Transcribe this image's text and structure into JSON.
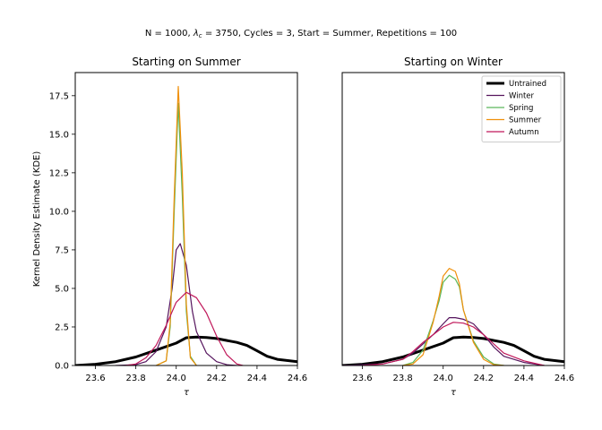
{
  "figure": {
    "suptitle_prefix": "N = 1000, ",
    "suptitle_lambda": "λ",
    "suptitle_sub": "c",
    "suptitle_suffix": " = 3750, Cycles = 3, Start = Summer, Repetitions = 100"
  },
  "chart_data": [
    {
      "type": "line",
      "title": "Starting on Summer",
      "xlabel": "τ",
      "ylabel": "Kernel Density Estimate (KDE)",
      "xlim": [
        23.5,
        24.6
      ],
      "ylim": [
        0,
        19
      ],
      "xticks": [
        "23.6",
        "23.8",
        "24.0",
        "24.2",
        "24.4",
        "24.6"
      ],
      "yticks": [
        "0.0",
        "2.5",
        "5.0",
        "7.5",
        "10.0",
        "12.5",
        "15.0",
        "17.5"
      ],
      "grid": false,
      "legend": "none",
      "series": [
        {
          "color": "#000000",
          "width": 3,
          "x": [
            23.5,
            23.6,
            23.7,
            23.8,
            23.9,
            24.0,
            24.05,
            24.1,
            24.15,
            24.2,
            24.3,
            24.35,
            24.4,
            24.45,
            24.5,
            24.6
          ],
          "y": [
            0.0,
            0.08,
            0.25,
            0.55,
            1.0,
            1.45,
            1.8,
            1.85,
            1.82,
            1.75,
            1.5,
            1.3,
            0.95,
            0.6,
            0.4,
            0.25
          ]
        },
        {
          "color": "#55145d",
          "width": 1.2,
          "x": [
            23.7,
            23.8,
            23.85,
            23.9,
            23.95,
            23.98,
            24.0,
            24.02,
            24.05,
            24.08,
            24.1,
            24.15,
            24.2,
            24.25,
            24.3
          ],
          "y": [
            0.0,
            0.05,
            0.25,
            0.9,
            2.5,
            5.0,
            7.5,
            7.9,
            6.5,
            3.5,
            2.2,
            0.8,
            0.25,
            0.05,
            0.0
          ]
        },
        {
          "color": "#5cb85c",
          "width": 1.2,
          "x": [
            23.9,
            23.95,
            23.97,
            23.99,
            24.01,
            24.03,
            24.05,
            24.07,
            24.1
          ],
          "y": [
            0.0,
            0.3,
            2.5,
            10.0,
            17.0,
            11.0,
            3.5,
            0.6,
            0.0
          ]
        },
        {
          "color": "#f0900a",
          "width": 1.2,
          "x": [
            23.9,
            23.95,
            23.97,
            23.99,
            24.01,
            24.03,
            24.05,
            24.07,
            24.1
          ],
          "y": [
            0.0,
            0.3,
            2.8,
            11.0,
            18.1,
            12.5,
            4.0,
            0.5,
            0.0
          ]
        },
        {
          "color": "#c0185a",
          "width": 1.2,
          "x": [
            23.75,
            23.8,
            23.85,
            23.9,
            23.95,
            24.0,
            24.05,
            24.1,
            24.15,
            24.2,
            24.25,
            24.3,
            24.33
          ],
          "y": [
            0.0,
            0.1,
            0.5,
            1.3,
            2.6,
            4.1,
            4.75,
            4.4,
            3.4,
            1.9,
            0.7,
            0.1,
            0.0
          ]
        }
      ]
    },
    {
      "type": "line",
      "title": "Starting on Winter",
      "xlabel": "τ",
      "xlim": [
        23.5,
        24.6
      ],
      "ylim": [
        0,
        19
      ],
      "xticks": [
        "23.6",
        "23.8",
        "24.0",
        "24.2",
        "24.4",
        "24.6"
      ],
      "grid": false,
      "legend": "top-right",
      "series": [
        {
          "name": "Untrained",
          "color": "#000000",
          "width": 3,
          "x": [
            23.5,
            23.6,
            23.7,
            23.8,
            23.9,
            24.0,
            24.05,
            24.1,
            24.15,
            24.2,
            24.3,
            24.35,
            24.4,
            24.45,
            24.5,
            24.6
          ],
          "y": [
            0.0,
            0.08,
            0.25,
            0.55,
            1.0,
            1.45,
            1.8,
            1.85,
            1.82,
            1.75,
            1.5,
            1.3,
            0.95,
            0.6,
            0.4,
            0.25
          ]
        },
        {
          "name": "Winter",
          "color": "#55145d",
          "width": 1.2,
          "x": [
            23.5,
            23.7,
            23.8,
            23.85,
            23.9,
            23.95,
            24.0,
            24.03,
            24.06,
            24.1,
            24.15,
            24.2,
            24.25,
            24.3,
            24.4,
            24.5
          ],
          "y": [
            0.0,
            0.1,
            0.4,
            0.8,
            1.4,
            2.0,
            2.7,
            3.1,
            3.1,
            3.0,
            2.7,
            2.0,
            1.2,
            0.6,
            0.2,
            0.0
          ]
        },
        {
          "name": "Spring",
          "color": "#5cb85c",
          "width": 1.2,
          "x": [
            23.8,
            23.85,
            23.9,
            23.95,
            23.98,
            24.0,
            24.03,
            24.06,
            24.08,
            24.1,
            24.15,
            24.2,
            24.25,
            24.3
          ],
          "y": [
            0.0,
            0.2,
            1.0,
            2.9,
            4.2,
            5.4,
            5.85,
            5.6,
            5.1,
            3.6,
            1.6,
            0.55,
            0.1,
            0.0
          ]
        },
        {
          "name": "Summer",
          "color": "#f0900a",
          "width": 1.2,
          "x": [
            23.8,
            23.85,
            23.9,
            23.95,
            23.98,
            24.0,
            24.03,
            24.06,
            24.08,
            24.1,
            24.15,
            24.2,
            24.25,
            24.3
          ],
          "y": [
            0.0,
            0.1,
            0.7,
            2.8,
            4.5,
            5.8,
            6.3,
            6.1,
            5.3,
            3.6,
            1.5,
            0.4,
            0.05,
            0.0
          ]
        },
        {
          "name": "Autumn",
          "color": "#c0185a",
          "width": 1.2,
          "x": [
            23.6,
            23.7,
            23.8,
            23.85,
            23.9,
            23.95,
            24.0,
            24.05,
            24.1,
            24.15,
            24.2,
            24.25,
            24.3,
            24.4,
            24.5
          ],
          "y": [
            0.0,
            0.1,
            0.4,
            0.9,
            1.5,
            2.0,
            2.5,
            2.8,
            2.75,
            2.5,
            2.0,
            1.4,
            0.8,
            0.3,
            0.0
          ]
        }
      ]
    }
  ]
}
